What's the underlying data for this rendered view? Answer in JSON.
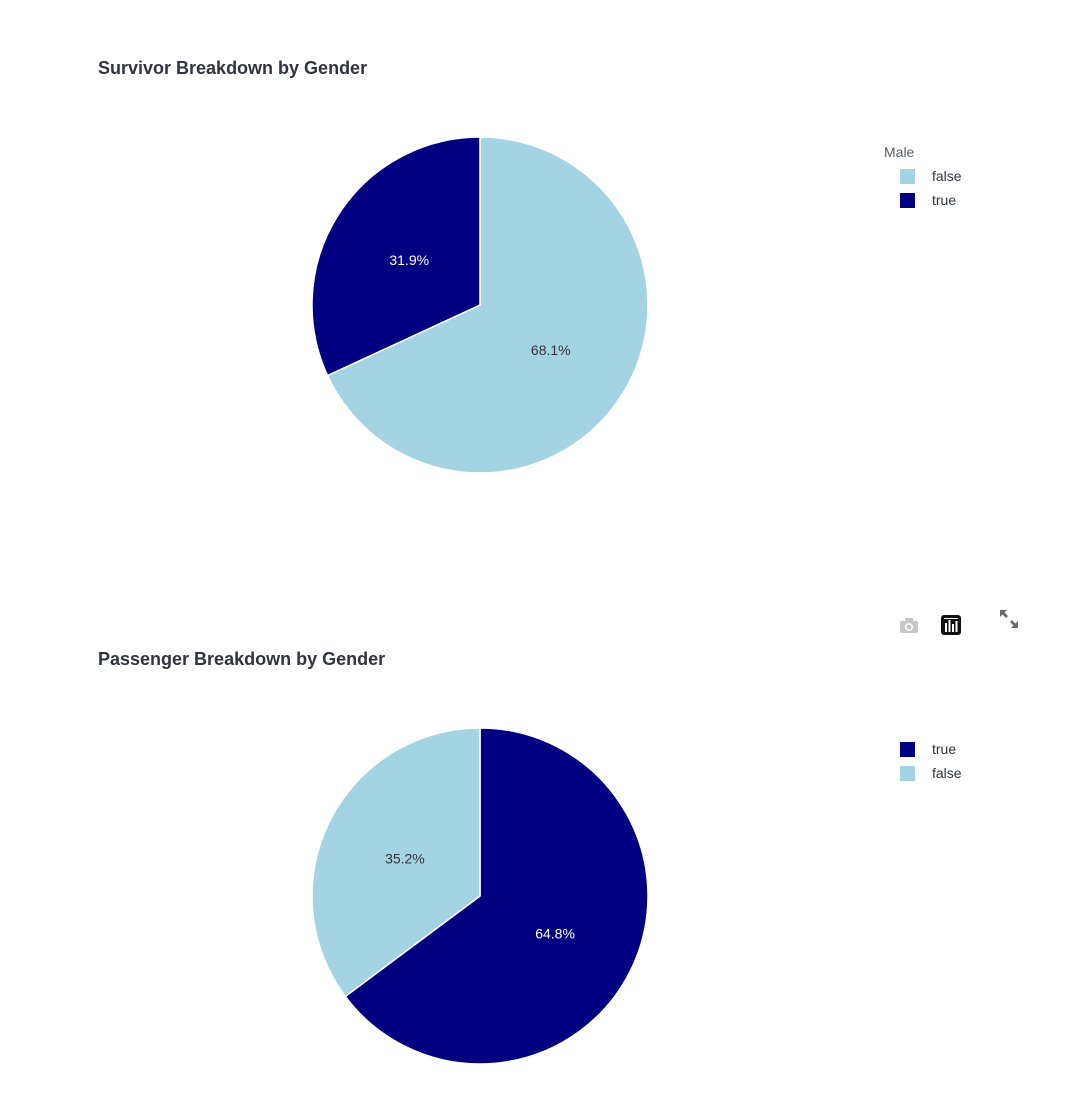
{
  "colors": {
    "true": "#000080",
    "false": "#a4d3e3"
  },
  "modebar": {
    "icons": [
      "camera-icon",
      "bar-chart-icon",
      "expand-icon"
    ]
  },
  "chart_data": [
    {
      "type": "pie",
      "title": "Survivor Breakdown by Gender",
      "legend_title": "Male",
      "legend_placement": "top-right",
      "slices": [
        {
          "label": "false",
          "value": 68.1,
          "text": "68.1%",
          "color": "#a4d3e3",
          "text_color": "#31333f"
        },
        {
          "label": "true",
          "value": 31.9,
          "text": "31.9%",
          "color": "#000080",
          "text_color": "#ffffff"
        }
      ]
    },
    {
      "type": "pie",
      "title": "Passenger Breakdown by Gender",
      "legend_title": "",
      "legend_placement": "top-right",
      "slices": [
        {
          "label": "true",
          "value": 64.8,
          "text": "64.8%",
          "color": "#000080",
          "text_color": "#ffffff"
        },
        {
          "label": "false",
          "value": 35.2,
          "text": "35.2%",
          "color": "#a4d3e3",
          "text_color": "#31333f"
        }
      ]
    }
  ]
}
